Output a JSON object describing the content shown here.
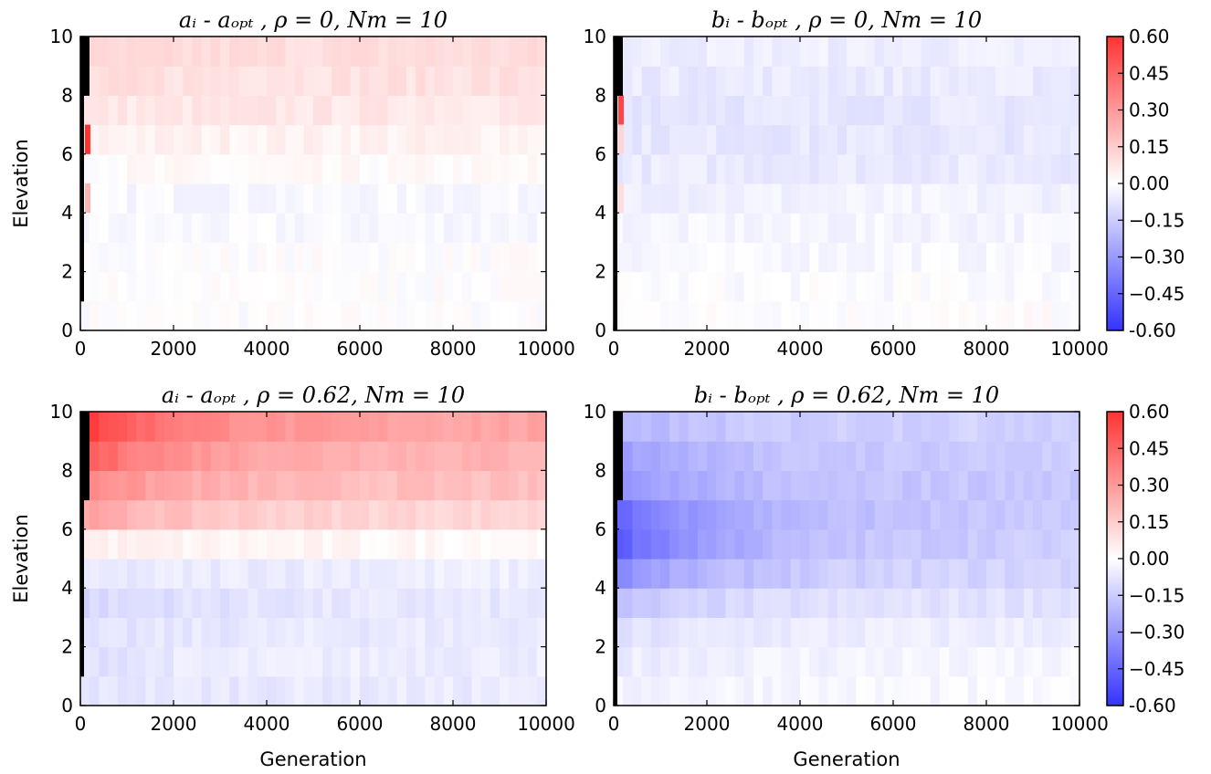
{
  "figure": {
    "colorbar_ticks": [
      "0.60",
      "0.45",
      "0.30",
      "0.15",
      "0.00",
      "−0.15",
      "−0.30",
      "−0.45",
      "-0.60"
    ]
  },
  "chart_data": [
    {
      "type": "heatmap",
      "title": "aᵢ - aₒₚₜ , ρ = 0,  Nm = 10",
      "xlabel": "",
      "ylabel": "Elevation",
      "xlim": [
        0,
        10000
      ],
      "ylim": [
        0,
        10
      ],
      "x_ticks": [
        "0",
        "2000",
        "4000",
        "6000",
        "8000",
        "10000"
      ],
      "y_ticks": [
        "0",
        "2",
        "4",
        "6",
        "8",
        "10"
      ],
      "colormap": "bwr",
      "clim": [
        -0.6,
        0.6
      ],
      "rows": 10,
      "row_bands_bottom_to_top": [
        0.0,
        0.0,
        0.0,
        -0.02,
        -0.02,
        0.01,
        0.04,
        0.07,
        0.09,
        0.1
      ],
      "initial_black_column_rows": [
        2,
        3,
        4,
        5,
        6,
        7,
        8,
        9,
        10
      ],
      "accent_cells": [
        {
          "row": 7,
          "value": 0.6
        },
        {
          "row": 5,
          "value": 0.22
        }
      ]
    },
    {
      "type": "heatmap",
      "title": "bᵢ - bₒₚₜ ,  ρ = 0,  Nm = 10",
      "xlabel": "",
      "ylabel": "",
      "xlim": [
        0,
        10000
      ],
      "ylim": [
        0,
        10
      ],
      "x_ticks": [
        "0",
        "2000",
        "4000",
        "6000",
        "8000",
        "10000"
      ],
      "y_ticks": [
        "0",
        "2",
        "4",
        "6",
        "8",
        "10"
      ],
      "colormap": "bwr",
      "clim": [
        -0.6,
        0.6
      ],
      "rows": 10,
      "row_bands_bottom_to_top": [
        0.0,
        -0.01,
        -0.02,
        -0.03,
        -0.04,
        -0.06,
        -0.07,
        -0.07,
        -0.06,
        -0.05
      ],
      "initial_black_column_rows": [
        1,
        2,
        3,
        4,
        5,
        6,
        7,
        8,
        9,
        10
      ],
      "accent_cells": [
        {
          "row": 8,
          "value": 0.55
        },
        {
          "row": 7,
          "value": 0.12
        },
        {
          "row": 5,
          "value": 0.1
        }
      ]
    },
    {
      "type": "heatmap",
      "title": "aᵢ - aₒₚₜ ,  ρ = 0.62,  Nm = 10",
      "xlabel": "Generation",
      "ylabel": "Elevation",
      "xlim": [
        0,
        10000
      ],
      "ylim": [
        0,
        10
      ],
      "x_ticks": [
        "0",
        "2000",
        "4000",
        "6000",
        "8000",
        "10000"
      ],
      "y_ticks": [
        "0",
        "2",
        "4",
        "6",
        "8",
        "10"
      ],
      "colormap": "bwr",
      "clim": [
        -0.6,
        0.6
      ],
      "rows": 10,
      "row_bands_bottom_to_top": [
        -0.06,
        -0.05,
        -0.06,
        -0.07,
        -0.05,
        0.02,
        0.12,
        0.18,
        0.22,
        0.26
      ],
      "row_bands_early_bottom_to_top": [
        -0.08,
        -0.09,
        -0.1,
        -0.12,
        -0.08,
        0.05,
        0.28,
        0.38,
        0.5,
        0.6
      ],
      "initial_black_column_rows": [
        2,
        3,
        4,
        5,
        6,
        7,
        8,
        9,
        10
      ],
      "accent_cells": []
    },
    {
      "type": "heatmap",
      "title": "bᵢ - bₒₚₜ ,  ρ = 0.62,  Nm = 10",
      "xlabel": "Generation",
      "ylabel": "",
      "xlim": [
        0,
        10000
      ],
      "ylim": [
        0,
        10
      ],
      "x_ticks": [
        "0",
        "2000",
        "4000",
        "6000",
        "8000",
        "10000"
      ],
      "y_ticks": [
        "0",
        "2",
        "4",
        "6",
        "8",
        "10"
      ],
      "colormap": "bwr",
      "clim": [
        -0.6,
        0.6
      ],
      "rows": 10,
      "row_bands_bottom_to_top": [
        -0.02,
        -0.03,
        -0.05,
        -0.08,
        -0.12,
        -0.14,
        -0.16,
        -0.16,
        -0.15,
        -0.13
      ],
      "row_bands_early_bottom_to_top": [
        -0.04,
        -0.06,
        -0.1,
        -0.2,
        -0.36,
        -0.5,
        -0.46,
        -0.34,
        -0.3,
        -0.24
      ],
      "initial_black_column_rows": [
        1,
        2,
        3,
        4,
        5,
        6,
        7,
        8,
        9,
        10
      ],
      "accent_cells": []
    }
  ]
}
